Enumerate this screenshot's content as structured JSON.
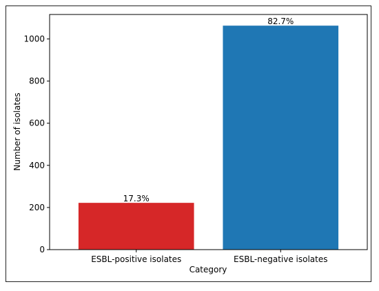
{
  "chart_data": {
    "type": "bar",
    "categories": [
      "ESBL-positive isolates",
      "ESBL-negative isolates"
    ],
    "values": [
      222,
      1063
    ],
    "data_labels": [
      "17.3%",
      "82.7%"
    ],
    "bar_colors": [
      "#d62728",
      "#1f77b4"
    ],
    "xlabel": "Category",
    "ylabel": "Number of isolates",
    "ylim": [
      0,
      1116
    ],
    "yticks": [
      0,
      200,
      400,
      600,
      800,
      1000
    ],
    "grid": false,
    "legend": "none"
  }
}
